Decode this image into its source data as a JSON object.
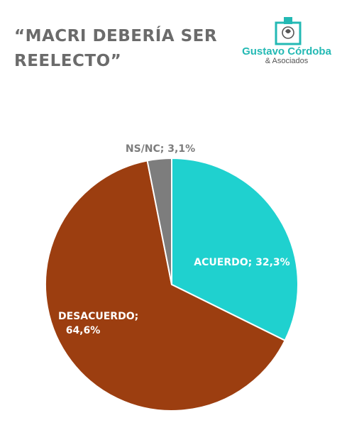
{
  "header": {
    "title_line1": "“MACRI DEBERÍA SER",
    "title_line2": "REELECTO”"
  },
  "logo": {
    "name": "Gustavo Córdoba",
    "sub": "& Asociados",
    "icon": "ballot-box-icon",
    "color": "#23b9b4"
  },
  "chart_data": {
    "type": "pie",
    "slices": [
      {
        "label": "ACUERDO; 32,3%",
        "category": "ACUERDO",
        "value": 32.3,
        "color": "#1fd1cf"
      },
      {
        "label": "DESACUERDO; 64,6%",
        "category": "DESACUERDO",
        "value": 64.6,
        "color": "#9c3e10"
      },
      {
        "label": "NS/NC; 3,1%",
        "category": "NS/NC",
        "value": 3.1,
        "color": "#7d7d7d"
      }
    ]
  }
}
